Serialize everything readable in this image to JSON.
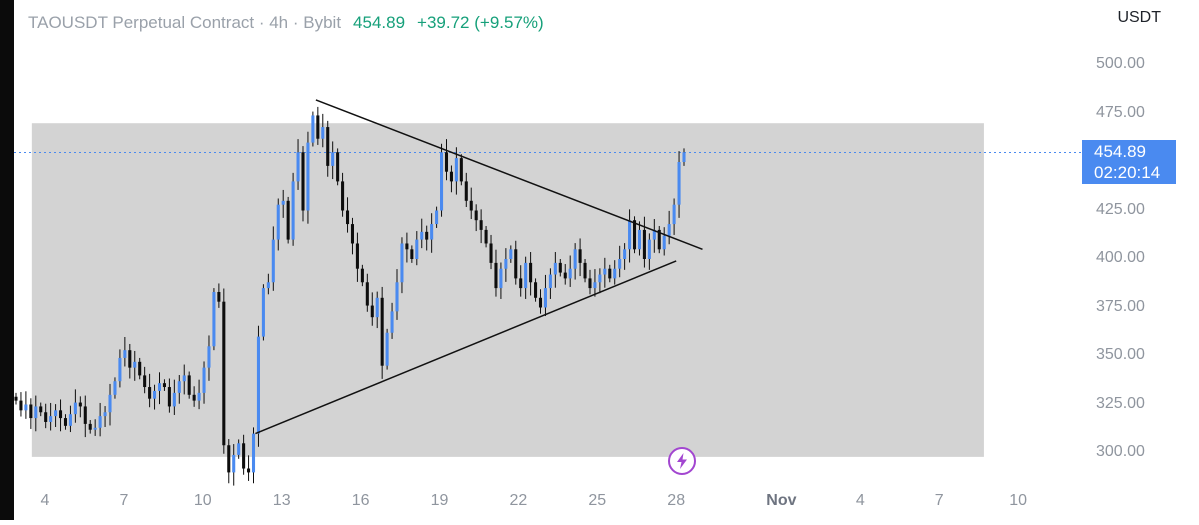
{
  "header": {
    "title": "TAOUSDT Perpetual Contract · 4h · Bybit",
    "last_price": "454.89",
    "change": "+39.72 (+9.57%)"
  },
  "quote_currency": "USDT",
  "price_badge": {
    "price": "454.89",
    "countdown": "02:20:14"
  },
  "colors": {
    "up": "#4a8af0",
    "down": "#0d0d0d",
    "zone": "#d3d3d3",
    "change_text": "#16a07a",
    "event_icon": "#a246d0"
  },
  "icons": {
    "event": "bolt-icon"
  },
  "chart_data": {
    "type": "candlestick",
    "symbol": "TAOUSDT",
    "interval": "4h",
    "exchange": "Bybit",
    "ylim": [
      295,
      510
    ],
    "y_ticks": [
      "500.00",
      "475.00",
      "425.00",
      "400.00",
      "375.00",
      "350.00",
      "325.00",
      "300.00"
    ],
    "x_ticks": [
      "4",
      "7",
      "10",
      "13",
      "16",
      "19",
      "22",
      "25",
      "28",
      "Nov",
      "4",
      "7",
      "10"
    ],
    "x_tick_days": [
      4,
      7,
      10,
      13,
      16,
      19,
      22,
      25,
      28,
      32,
      35,
      38,
      41
    ],
    "last_price_line": 454.89,
    "zone": {
      "x_from": 3.5,
      "x_to": 39.7,
      "y_from": 298,
      "y_to": 470
    },
    "trendlines": [
      {
        "name": "upper",
        "from": [
          14.3,
          482
        ],
        "to": [
          29.0,
          405
        ]
      },
      {
        "name": "lower",
        "from": [
          12.0,
          310
        ],
        "to": [
          28.0,
          399
        ]
      }
    ],
    "candles_close": [
      327,
      322,
      325,
      318,
      324,
      321,
      316,
      319,
      322,
      318,
      314,
      320,
      326,
      324,
      315,
      312,
      313,
      319,
      321,
      330,
      337,
      349,
      353,
      344,
      347,
      340,
      334,
      328,
      332,
      336,
      334,
      324,
      331,
      337,
      340,
      330,
      327,
      331,
      344,
      355,
      383,
      378,
      304,
      290,
      299,
      305,
      292,
      290,
      310,
      360,
      385,
      388,
      410,
      428,
      430,
      410,
      440,
      455,
      425,
      460,
      474,
      462,
      468,
      448,
      455,
      440,
      425,
      418,
      408,
      395,
      388,
      376,
      370,
      380,
      345,
      362,
      373,
      388,
      408,
      405,
      400,
      410,
      414,
      410,
      418,
      425,
      455,
      445,
      440,
      452,
      440,
      430,
      425,
      420,
      415,
      408,
      398,
      385,
      395,
      400,
      405,
      390,
      385,
      398,
      388,
      380,
      375,
      385,
      392,
      398,
      393,
      390,
      395,
      405,
      398,
      390,
      385,
      388,
      392,
      395,
      390,
      395,
      400,
      405,
      420,
      405,
      415,
      400,
      410,
      415,
      405,
      412,
      418,
      428,
      450,
      455
    ]
  }
}
